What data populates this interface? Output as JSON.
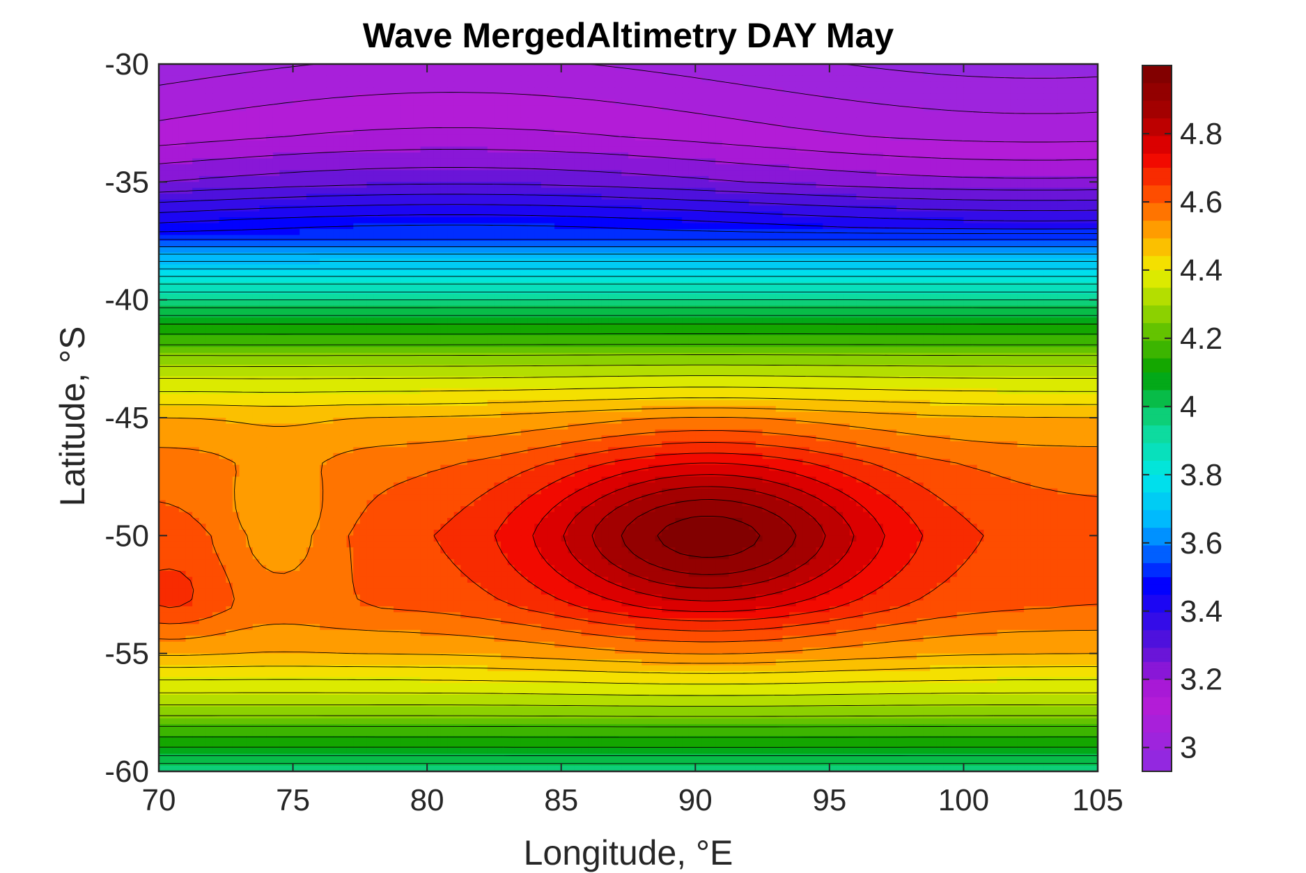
{
  "chart_data": {
    "type": "heatmap",
    "subtype": "filled-contour",
    "title": "Wave MergedAltimetry DAY May",
    "xlabel": "Longitude, °E",
    "ylabel": "Latitude, °S",
    "xlim": [
      70,
      105
    ],
    "ylim": [
      -60,
      -30
    ],
    "xticks": [
      70,
      75,
      80,
      85,
      90,
      95,
      100,
      105
    ],
    "yticks": [
      -30,
      -35,
      -40,
      -45,
      -50,
      -55,
      -60
    ],
    "xtick_labels": [
      "70",
      "75",
      "80",
      "85",
      "90",
      "95",
      "100",
      "105"
    ],
    "ytick_labels": [
      "-30",
      "-35",
      "-40",
      "-45",
      "-50",
      "-55",
      "-60"
    ],
    "colorbar": {
      "range": [
        2.93,
        5.0
      ],
      "ticks": [
        3,
        3.2,
        3.4,
        3.6,
        3.8,
        4,
        4.2,
        4.4,
        4.6,
        4.8
      ],
      "tick_labels": [
        "3",
        "3.2",
        "3.4",
        "3.6",
        "3.8",
        "4",
        "4.2",
        "4.4",
        "4.6",
        "4.8"
      ],
      "colormap": [
        {
          "v": 2.93,
          "c": "#8a2be2"
        },
        {
          "v": 3.15,
          "c": "#b81ad6"
        },
        {
          "v": 3.3,
          "c": "#5a14d8"
        },
        {
          "v": 3.48,
          "c": "#0000ff"
        },
        {
          "v": 3.66,
          "c": "#00b4ff"
        },
        {
          "v": 3.8,
          "c": "#00e8e8"
        },
        {
          "v": 3.95,
          "c": "#10d890"
        },
        {
          "v": 4.1,
          "c": "#00a000"
        },
        {
          "v": 4.3,
          "c": "#a0d800"
        },
        {
          "v": 4.4,
          "c": "#f0f000"
        },
        {
          "v": 4.5,
          "c": "#ffb000"
        },
        {
          "v": 4.62,
          "c": "#ff5000"
        },
        {
          "v": 4.74,
          "c": "#f00000"
        },
        {
          "v": 4.86,
          "c": "#a80000"
        },
        {
          "v": 5.0,
          "c": "#7a0000"
        }
      ]
    },
    "latitude_profile": [
      {
        "lat": -30,
        "v": 3.02
      },
      {
        "lat": -33,
        "v": 3.12
      },
      {
        "lat": -35,
        "v": 3.25
      },
      {
        "lat": -37,
        "v": 3.48
      },
      {
        "lat": -39,
        "v": 3.8
      },
      {
        "lat": -41,
        "v": 4.1
      },
      {
        "lat": -43,
        "v": 4.32
      },
      {
        "lat": -45,
        "v": 4.5
      },
      {
        "lat": -47,
        "v": 4.58
      },
      {
        "lat": -50,
        "v": 4.62
      },
      {
        "lat": -53,
        "v": 4.6
      },
      {
        "lat": -55,
        "v": 4.5
      },
      {
        "lat": -57,
        "v": 4.32
      },
      {
        "lat": -59,
        "v": 4.1
      },
      {
        "lat": -60,
        "v": 3.95
      }
    ],
    "peak": {
      "lon": 90.5,
      "lat": -50,
      "value": 4.98
    },
    "data_range": [
      2.95,
      4.98
    ]
  }
}
